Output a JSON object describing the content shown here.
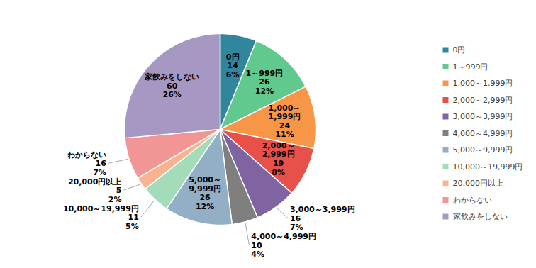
{
  "chart_data": {
    "type": "pie",
    "categories": [
      "0円",
      "1～999円",
      "1,000～1,999円",
      "2,000～2,999円",
      "3,000～3,999円",
      "4,000～4,999円",
      "5,000～9,999円",
      "10,000～19,999円",
      "20,000円以上",
      "わからない",
      "家飲みをしない"
    ],
    "values": [
      14,
      26,
      24,
      19,
      16,
      10,
      26,
      11,
      5,
      16,
      60
    ],
    "percentages": [
      6,
      12,
      11,
      8,
      7,
      4,
      12,
      5,
      2,
      7,
      26
    ],
    "percent_labels": [
      "6%",
      "12%",
      "11%",
      "8%",
      "7%",
      "4%",
      "12%",
      "5%",
      "2%",
      "7%",
      "26%"
    ],
    "colors": [
      "#31859c",
      "#62c98e",
      "#f79646",
      "#e8504a",
      "#8064a2",
      "#7f7f7f",
      "#92afc6",
      "#a2dcb8",
      "#f9b38f",
      "#f19595",
      "#a698c2"
    ],
    "data_labels": true,
    "legend": "right"
  }
}
